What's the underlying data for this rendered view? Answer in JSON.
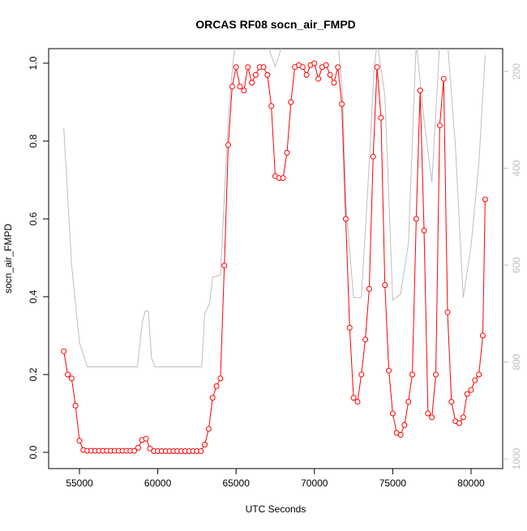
{
  "chart_data": {
    "type": "line",
    "title": "ORCAS RF08 socn_air_FMPD",
    "x_label": "UTC Seconds",
    "y_label": "socn_air_FMPD",
    "xlim": [
      53033,
      82019
    ],
    "xticks": [
      55000,
      60000,
      65000,
      70000,
      75000,
      80000
    ],
    "ylim": [
      -0.0417,
      1.0375
    ],
    "yticks": [
      {
        "value": 0,
        "label": "0.0"
      },
      0.2,
      0.4,
      0.6,
      0.8,
      {
        "value": 1,
        "label": "1.0"
      }
    ],
    "y2lim": [
      1020,
      153
    ],
    "y2ticks": [
      200,
      400,
      600,
      800,
      1000
    ],
    "y2_color": "#bebebe",
    "series": [
      {
        "color": "#bebebe",
        "axis": "y2",
        "markers": false,
        "x": [
          54000,
          54500,
          55000,
          55500,
          58700,
          59000,
          59200,
          59400,
          59600,
          59800,
          62800,
          63000,
          63300,
          63500,
          64000,
          64500,
          64800,
          65000,
          66000,
          67000,
          67500,
          68000,
          71500,
          71800,
          72000,
          72500,
          73000,
          73500,
          73800,
          74000,
          74500,
          75000,
          75500,
          76000,
          76500,
          77000,
          77500,
          78000,
          78500,
          79000,
          79500,
          80000,
          80500,
          80900
        ],
        "values": [
          317,
          600,
          760,
          810,
          810,
          720,
          695,
          695,
          790,
          810,
          810,
          700,
          680,
          625,
          620,
          300,
          180,
          140,
          140,
          145,
          190,
          140,
          140,
          250,
          470,
          667,
          667,
          390,
          200,
          140,
          250,
          672,
          660,
          555,
          140,
          300,
          430,
          140,
          140,
          354,
          667,
          560,
          390,
          166
        ]
      },
      {
        "color": "#ff0000",
        "markers": true,
        "x": [
          54000,
          54250,
          54500,
          54750,
          55000,
          55250,
          55500,
          55750,
          56000,
          56250,
          56500,
          56750,
          57000,
          57250,
          57500,
          57750,
          58000,
          58250,
          58500,
          58750,
          59000,
          59250,
          59500,
          59750,
          60000,
          60250,
          60500,
          60750,
          61000,
          61250,
          61500,
          61750,
          62000,
          62250,
          62500,
          62750,
          63000,
          63250,
          63500,
          63750,
          64000,
          64250,
          64500,
          64750,
          65000,
          65250,
          65500,
          65750,
          66000,
          66250,
          66500,
          66750,
          67000,
          67250,
          67500,
          67750,
          68000,
          68250,
          68500,
          68750,
          69000,
          69250,
          69500,
          69750,
          70000,
          70250,
          70500,
          70750,
          71000,
          71250,
          71500,
          71750,
          72000,
          72250,
          72500,
          72750,
          73000,
          73250,
          73500,
          73750,
          74000,
          74250,
          74500,
          74750,
          75000,
          75250,
          75500,
          75750,
          76000,
          76250,
          76500,
          76750,
          77000,
          77250,
          77500,
          77750,
          78000,
          78250,
          78500,
          78750,
          79000,
          79250,
          79500,
          79750,
          80000,
          80250,
          80500,
          80750,
          80900
        ],
        "values": [
          0.26,
          0.2,
          0.19,
          0.12,
          0.03,
          0.006,
          0.004,
          0.004,
          0.004,
          0.004,
          0.004,
          0.004,
          0.004,
          0.004,
          0.004,
          0.004,
          0.004,
          0.004,
          0.004,
          0.012,
          0.032,
          0.035,
          0.01,
          0.003,
          0.003,
          0.003,
          0.003,
          0.003,
          0.003,
          0.003,
          0.003,
          0.003,
          0.003,
          0.003,
          0.003,
          0.003,
          0.02,
          0.06,
          0.14,
          0.17,
          0.19,
          0.48,
          0.79,
          0.94,
          0.99,
          0.94,
          0.93,
          0.99,
          0.95,
          0.97,
          0.99,
          0.99,
          0.97,
          0.89,
          0.71,
          0.705,
          0.705,
          0.77,
          0.9,
          0.99,
          0.995,
          0.99,
          0.97,
          0.995,
          1.0,
          0.96,
          0.99,
          0.995,
          0.97,
          0.95,
          0.99,
          0.895,
          0.6,
          0.32,
          0.14,
          0.13,
          0.2,
          0.29,
          0.42,
          0.76,
          0.99,
          0.86,
          0.43,
          0.21,
          0.1,
          0.05,
          0.045,
          0.07,
          0.13,
          0.2,
          0.6,
          0.93,
          0.57,
          0.1,
          0.09,
          0.2,
          0.84,
          0.96,
          0.36,
          0.13,
          0.08,
          0.075,
          0.09,
          0.15,
          0.16,
          0.185,
          0.2,
          0.3,
          0.65
        ]
      }
    ]
  }
}
